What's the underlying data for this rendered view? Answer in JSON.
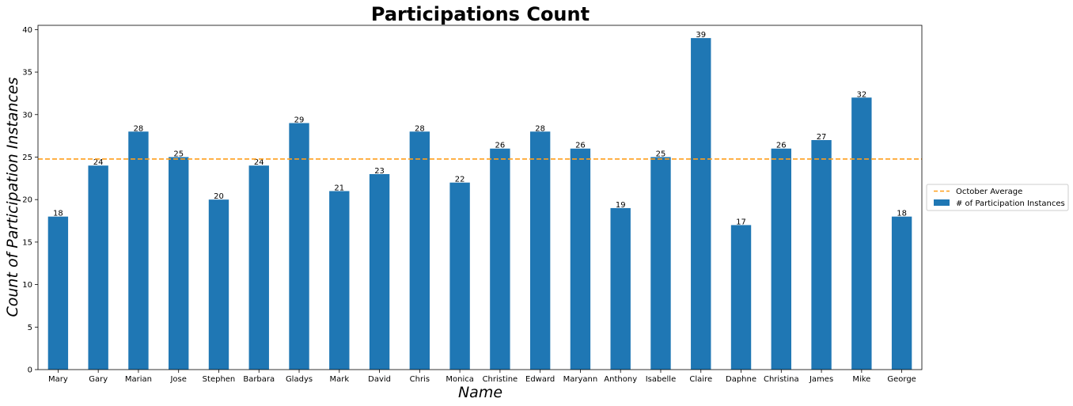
{
  "chart_data": {
    "type": "bar",
    "title": "Participations Count",
    "xlabel": "Name",
    "ylabel": "Count of Participation Instances",
    "categories": [
      "Mary",
      "Gary",
      "Marian",
      "Jose",
      "Stephen",
      "Barbara",
      "Gladys",
      "Mark",
      "David",
      "Chris",
      "Monica",
      "Christine",
      "Edward",
      "Maryann",
      "Anthony",
      "Isabelle",
      "Claire",
      "Daphne",
      "Christina",
      "James",
      "Mike",
      "George"
    ],
    "series": [
      {
        "name": "# of Participation Instances",
        "color": "#1f77b4",
        "values": [
          18,
          24,
          28,
          25,
          20,
          24,
          29,
          21,
          23,
          28,
          22,
          26,
          28,
          26,
          19,
          25,
          39,
          17,
          26,
          27,
          32,
          18
        ]
      }
    ],
    "reference_line": {
      "name": "October Average",
      "value": 24.77,
      "color": "#ff9f1c",
      "style": "dashed"
    },
    "ylim": [
      0,
      40.5
    ],
    "yticks": [
      0,
      5,
      10,
      15,
      20,
      25,
      30,
      35,
      40
    ],
    "grid": false,
    "legend": {
      "placement": "right-outside",
      "entries": [
        "October Average",
        "# of Participation Instances"
      ]
    }
  }
}
